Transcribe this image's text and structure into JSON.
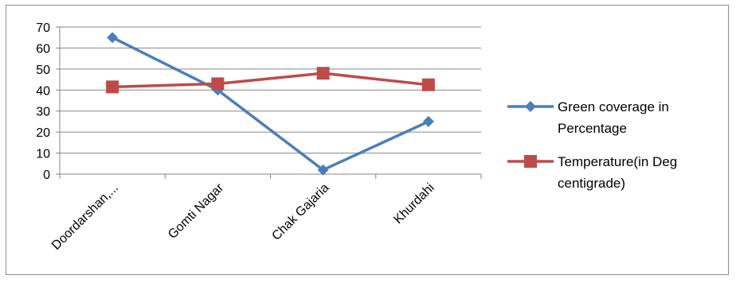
{
  "chart_data": {
    "type": "line",
    "categories": [
      "Doordarshan,...",
      "Gomti Nagar",
      "Chak Gajaria",
      "Khurdahi"
    ],
    "series": [
      {
        "name": "Green coverage in Percentage",
        "name_lines": [
          "Green coverage in",
          "Percentage"
        ],
        "values": [
          65,
          40,
          2,
          25
        ],
        "color": "#4a7ebb",
        "marker": "diamond"
      },
      {
        "name": "Temperature(in Deg centigrade)",
        "name_lines": [
          "Temperature(in Deg",
          "centigrade)"
        ],
        "values": [
          41.5,
          43,
          48,
          42.5
        ],
        "color": "#be4b48",
        "marker": "square"
      }
    ],
    "yticks": [
      "0",
      "10",
      "20",
      "30",
      "40",
      "50",
      "60",
      "70"
    ],
    "ylim": [
      0,
      70
    ],
    "grid": true,
    "legend": "right",
    "title": "",
    "xlabel": "",
    "ylabel": ""
  }
}
